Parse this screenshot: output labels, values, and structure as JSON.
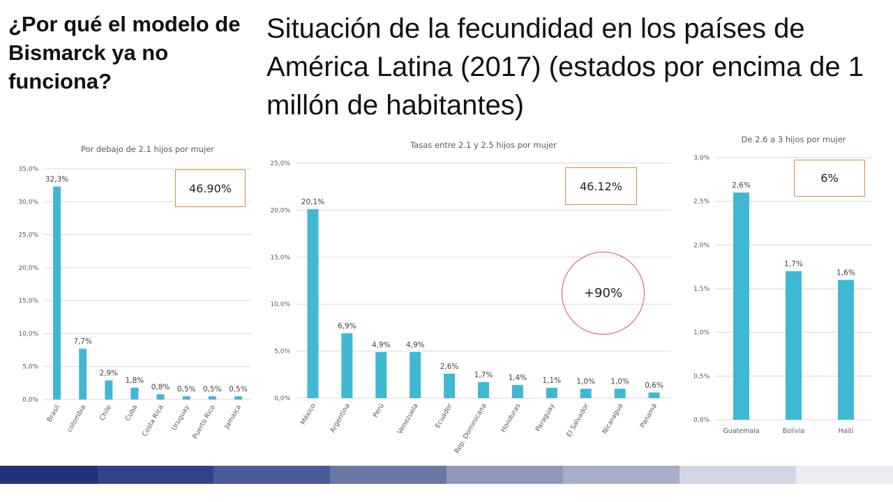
{
  "side_title": "¿Por qué el modelo de Bismarck ya no funciona?",
  "main_title": "Situación de la fecundidad en los países de América Latina (2017) (estados por encima de 1 millón de habitantes)",
  "callouts": {
    "left": "46.90%",
    "middle": "46.12%",
    "right": "6%",
    "circle": "+90%"
  },
  "colors": {
    "bar": "#3fb8d3",
    "callout_border": "#d98a3a",
    "circle_border": "#d9534f",
    "footer": [
      "#23317a",
      "#33418a",
      "#4b5a96",
      "#6a76a6",
      "#8f99bd",
      "#a7aec9",
      "#d3d7e3",
      "#ecedf2"
    ]
  },
  "chart_data": [
    {
      "type": "bar",
      "title": "Por debajo de 2.1 hijos por mujer",
      "categories": [
        "Brasil",
        "colombia",
        "Chile",
        "Cuba",
        "Costa Rica",
        "Uruguay",
        "Puerto Rico",
        "Jamaica"
      ],
      "values": [
        32.3,
        7.7,
        2.9,
        1.8,
        0.8,
        0.5,
        0.5,
        0.5
      ],
      "data_labels": [
        "32,3%",
        "7,7%",
        "2,9%",
        "1,8%",
        "0,8%",
        "0,5%",
        "0,5%",
        "0,5%"
      ],
      "ylim": [
        0,
        35
      ],
      "yticks": [
        "0,0%",
        "5,0%",
        "10,0%",
        "15,0%",
        "20,0%",
        "25,0%",
        "30,0%",
        "35,0%"
      ],
      "grid": true,
      "rotate_labels": true
    },
    {
      "type": "bar",
      "title": "Tasas entre 2.1 y 2.5 hijos por mujer",
      "categories": [
        "México",
        "Argentina",
        "Perú",
        "Venezuela",
        "Ecuador",
        "Rep. Dominicana",
        "Honduras",
        "Paraguay",
        "El Salvador",
        "Nicaragua",
        "Panamá"
      ],
      "values": [
        20.1,
        6.9,
        4.9,
        4.9,
        2.6,
        1.7,
        1.4,
        1.1,
        1.0,
        1.0,
        0.6
      ],
      "data_labels": [
        "20,1%",
        "6,9%",
        "4,9%",
        "4,9%",
        "2,6%",
        "1,7%",
        "1,4%",
        "1,1%",
        "1,0%",
        "1,0%",
        "0,6%"
      ],
      "ylim": [
        0,
        25
      ],
      "yticks": [
        "0,0%",
        "5,0%",
        "10,0%",
        "15,0%",
        "20,0%",
        "25,0%"
      ],
      "grid": true,
      "rotate_labels": true
    },
    {
      "type": "bar",
      "title": "De 2.6 a 3 hijos por mujer",
      "categories": [
        "Guatemala",
        "Bolivia",
        "Haití"
      ],
      "values": [
        2.6,
        1.7,
        1.6
      ],
      "data_labels": [
        "2,6%",
        "1,7%",
        "1,6%"
      ],
      "ylim": [
        0,
        3
      ],
      "yticks": [
        "0,0%",
        "0,5%",
        "1,0%",
        "1,5%",
        "2,0%",
        "2,5%",
        "3,0%"
      ],
      "grid": true,
      "rotate_labels": false
    }
  ]
}
